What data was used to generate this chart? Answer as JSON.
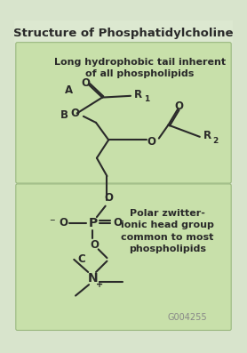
{
  "title": "Structure of Phosphatidylcholine",
  "bg_color": "#d8e4cc",
  "panel_color": "#c8e0aa",
  "top_label": "Long hydrophobic tail inherent\nof all phospholipids",
  "bottom_label": "Polar zwitter-\nionic head group\ncommon to most\nphospholipids",
  "watermark": "G004255",
  "label_A": "A",
  "label_B": "B",
  "label_C": "C",
  "label_R1": "R",
  "label_R2": "R",
  "label_O": "O",
  "label_P": "P",
  "label_N": "N"
}
